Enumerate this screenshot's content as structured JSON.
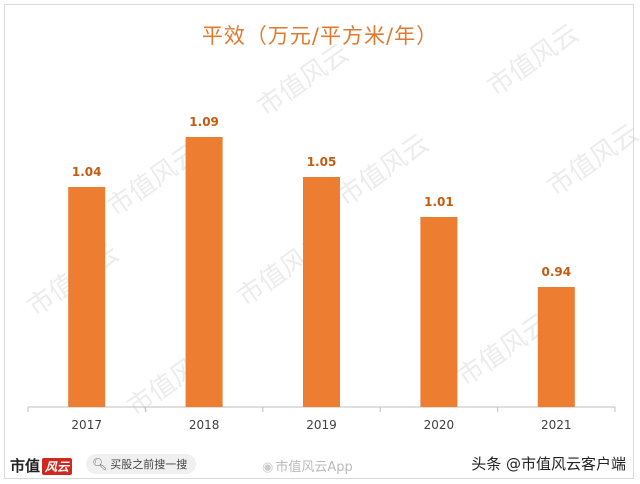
{
  "chart_data": {
    "type": "bar",
    "title": "平效（万元/平方米/年）",
    "categories": [
      "2017",
      "2018",
      "2019",
      "2020",
      "2021"
    ],
    "values": [
      1.04,
      1.09,
      1.05,
      1.01,
      0.94
    ],
    "data_labels": [
      "1.04",
      "1.09",
      "1.05",
      "1.01",
      "0.94"
    ],
    "ylim": [
      0.82,
      1.12
    ],
    "grid": false,
    "legend": "none",
    "bar_color": "#ed7d31",
    "label_color": "#c55a11"
  },
  "watermark_text": "市值风云",
  "footer": {
    "logo_text": "市值",
    "logo_mark": "风云",
    "search_text": "买股之前搜一搜",
    "weibo_text": "市值风云App",
    "credit_text": "头条 @市值风云客户端"
  }
}
